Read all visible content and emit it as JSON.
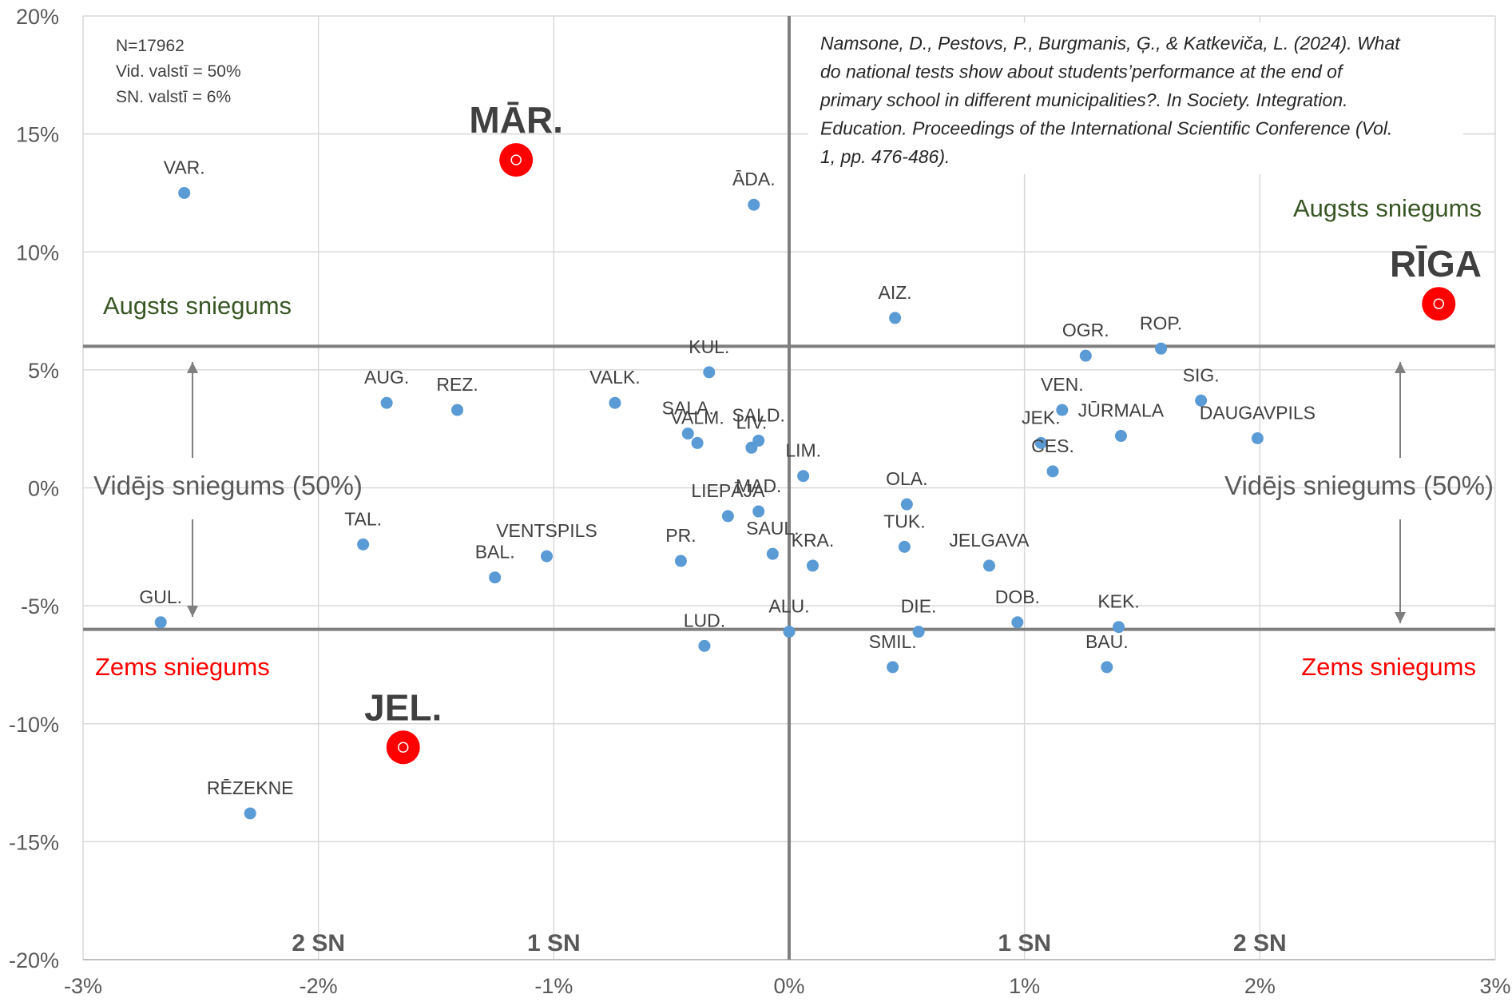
{
  "chart_data": {
    "type": "scatter",
    "xlim": [
      -3,
      3
    ],
    "ylim": [
      -20,
      15
    ],
    "x_ticks": [
      "-3%",
      "-2%",
      "-1%",
      "0%",
      "1%",
      "2%",
      "3%"
    ],
    "y_ticks": [
      "20%",
      "15%",
      "10%",
      "5%",
      "0%",
      "-5%",
      "-10%",
      "-15%",
      "-20%"
    ],
    "grid": true,
    "points": [
      {
        "label": "VAR.",
        "x": -2.57,
        "y": 12.5
      },
      {
        "label": "ĀDA.",
        "x": -0.15,
        "y": 12.0
      },
      {
        "label": "AIZ.",
        "x": 0.45,
        "y": 7.2
      },
      {
        "label": "OGR.",
        "x": 1.26,
        "y": 5.6
      },
      {
        "label": "ROP.",
        "x": 1.58,
        "y": 5.9
      },
      {
        "label": "KUL.",
        "x": -0.34,
        "y": 4.9
      },
      {
        "label": "AUG.",
        "x": -1.71,
        "y": 3.6
      },
      {
        "label": "REZ.",
        "x": -1.41,
        "y": 3.3
      },
      {
        "label": "VALK.",
        "x": -0.74,
        "y": 3.6
      },
      {
        "label": "VEN.",
        "x": 1.16,
        "y": 3.3
      },
      {
        "label": "SIG.",
        "x": 1.75,
        "y": 3.7
      },
      {
        "label": "SALA.",
        "x": -0.43,
        "y": 2.3
      },
      {
        "label": "VALM.",
        "x": -0.39,
        "y": 1.9
      },
      {
        "label": "LIV.",
        "x": -0.16,
        "y": 1.7
      },
      {
        "label": "SALD.",
        "x": -0.13,
        "y": 2.0
      },
      {
        "label": "JEK.",
        "x": 1.07,
        "y": 1.9
      },
      {
        "label": "JŪRMALA",
        "x": 1.41,
        "y": 2.2
      },
      {
        "label": "DAUGAVPILS",
        "x": 1.99,
        "y": 2.1
      },
      {
        "label": "LIM.",
        "x": 0.06,
        "y": 0.5
      },
      {
        "label": "CES.",
        "x": 1.12,
        "y": 0.7
      },
      {
        "label": "OLA.",
        "x": 0.5,
        "y": -0.7
      },
      {
        "label": "MAD.",
        "x": -0.13,
        "y": -1.0
      },
      {
        "label": "LIEPĀJA",
        "x": -0.26,
        "y": -1.2
      },
      {
        "label": "TUK.",
        "x": 0.49,
        "y": -2.5
      },
      {
        "label": "TAL.",
        "x": -1.81,
        "y": -2.4
      },
      {
        "label": "VENTSPILS",
        "x": -1.03,
        "y": -2.9
      },
      {
        "label": "PR.",
        "x": -0.46,
        "y": -3.1
      },
      {
        "label": "SAUL.",
        "x": -0.07,
        "y": -2.8
      },
      {
        "label": "KRA.",
        "x": 0.1,
        "y": -3.3
      },
      {
        "label": "JELGAVA",
        "x": 0.85,
        "y": -3.3
      },
      {
        "label": "BAL.",
        "x": -1.25,
        "y": -3.8
      },
      {
        "label": "GUL.",
        "x": -2.67,
        "y": -5.7
      },
      {
        "label": "ALU.",
        "x": 0.0,
        "y": -6.1
      },
      {
        "label": "DIE.",
        "x": 0.55,
        "y": -6.1
      },
      {
        "label": "DOB.",
        "x": 0.97,
        "y": -5.7
      },
      {
        "label": "KEK.",
        "x": 1.4,
        "y": -5.9
      },
      {
        "label": "LUD.",
        "x": -0.36,
        "y": -6.7
      },
      {
        "label": "SMIL.",
        "x": 0.44,
        "y": -7.6
      },
      {
        "label": "BAU.",
        "x": 1.35,
        "y": -7.6
      },
      {
        "label": "RĒZEKNE",
        "x": -2.29,
        "y": -13.8
      }
    ],
    "highlighted_points": [
      {
        "label": "MĀR.",
        "x": -1.16,
        "y": 13.9
      },
      {
        "label": "RĪGA",
        "x": 2.76,
        "y": 7.8
      },
      {
        "label": "JEL.",
        "x": -1.64,
        "y": -11.0
      }
    ],
    "reference_lines": {
      "vertical_x": 0,
      "horizontal_y": [
        6,
        -6
      ]
    },
    "zones": {
      "high_left": "Augsts sniegums",
      "high_right": "Augsts sniegums",
      "mid_left": "Vidējs sniegums (50%)",
      "mid_right": "Vidējs sniegums (50%)",
      "low_left": "Zems sniegums",
      "low_right": "Zems sniegums"
    },
    "sn_labels": [
      {
        "text": "2 SN",
        "x": -2
      },
      {
        "text": "1 SN",
        "x": -1
      },
      {
        "text": "1 SN",
        "x": 1
      },
      {
        "text": "2 SN",
        "x": 2
      }
    ],
    "stats": [
      "N=17962",
      "Vid. valstī = 50%",
      "SN. valstī = 6%"
    ],
    "citation": [
      "Namsone, D., Pestovs, P., Burgmanis, Ģ., & Katkeviča, L. (2024). What",
      "do national tests show about students’performance at the end of",
      "primary school in different municipalities?. In Society. Integration.",
      "Education. Proceedings of the International Scientific Conference (Vol.",
      "1, pp. 476-486)."
    ],
    "colors": {
      "point": "#5B9BD5",
      "highlight": "#FF0000",
      "high_text": "#375623",
      "low_text": "#FF0000",
      "reference_line": "#7F7F7F",
      "grid": "#D9D9D9"
    }
  }
}
